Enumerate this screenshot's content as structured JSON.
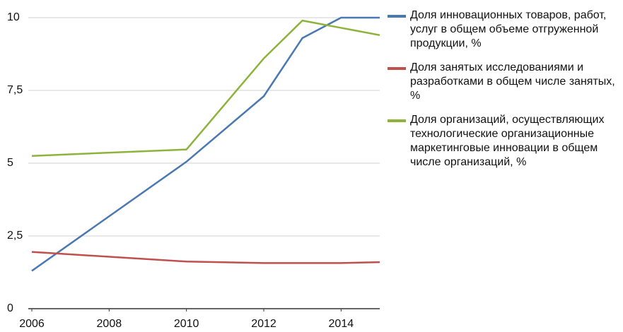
{
  "chart_data": {
    "type": "line",
    "x": [
      2006,
      2010,
      2012,
      2013,
      2014,
      2015
    ],
    "series": [
      {
        "name": "Доля инновационных товаров, работ, услуг в общем объеме отгруженной продукции, %",
        "color": "#4a78b0",
        "values": [
          1.3,
          5.05,
          7.3,
          9.3,
          10,
          10
        ]
      },
      {
        "name": "Доля занятых  исследованиями и разработками в общем числе занятых, %",
        "color": "#c0504d",
        "values": [
          1.95,
          1.62,
          1.57,
          1.57,
          1.57,
          1.6
        ]
      },
      {
        "name": "Доля организаций, осуществляющих технологические организационные маркетинговые инновации в общем числе организаций, %",
        "color": "#8db33b",
        "values": [
          5.25,
          5.47,
          8.6,
          9.9,
          9.65,
          9.4
        ]
      }
    ],
    "xlim": [
      2006,
      2015
    ],
    "xticks": [
      2006,
      2008,
      2010,
      2012,
      2014
    ],
    "ylim": [
      0,
      10
    ],
    "yticks": [
      0,
      {
        "value": 2.5,
        "label": "2,5"
      },
      5,
      {
        "value": 7.5,
        "label": "7,5"
      },
      10
    ],
    "grid": true
  }
}
